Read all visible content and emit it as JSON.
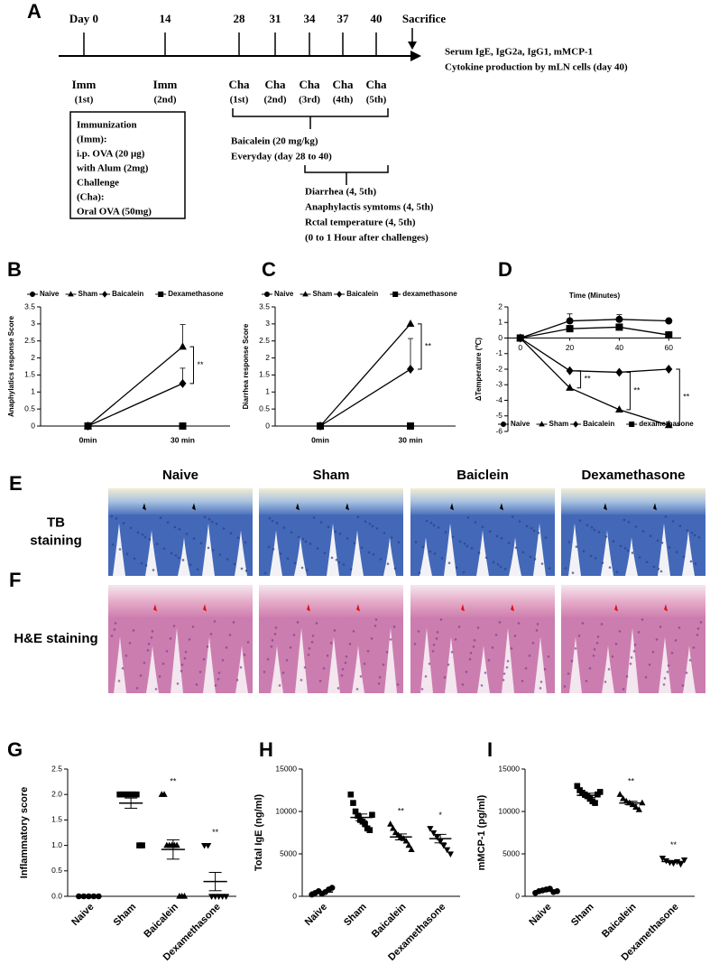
{
  "timeline": {
    "panel": "A",
    "days": [
      "Day 0",
      "14",
      "28",
      "31",
      "34",
      "37",
      "40"
    ],
    "events": [
      [
        "Imm",
        "(1st)"
      ],
      [
        "Imm",
        "(2nd)"
      ],
      [
        "Cha",
        "(1st)"
      ],
      [
        "Cha",
        "(2nd)"
      ],
      [
        "Cha",
        "(3rd)"
      ],
      [
        "Cha",
        "(4th)"
      ],
      [
        "Cha",
        "(5th)"
      ]
    ],
    "sacrifice": "Sacrifice",
    "outcomes": [
      "Serum IgE, IgG2a, IgG1, mMCP-1",
      "Cytokine production by mLN cells (day 40)"
    ],
    "box": [
      "Immunization",
      "(Imm):",
      "i.p. OVA (20 μg)",
      "with Alum (2mg)",
      "Challenge",
      "(Cha):",
      "Oral OVA (50mg)"
    ],
    "treatment": [
      "Baicalein (20 mg/kg)",
      "Everyday (day 28 to 40)"
    ],
    "measurements": [
      "Diarrhea (4, 5th)",
      "Anaphylactis symtoms (4, 5th)",
      "Rctal temperature (4, 5th)",
      "(0 to 1 Hour after challenges)"
    ]
  },
  "histology": {
    "panels": [
      "E",
      "F"
    ],
    "columns": [
      "Naive",
      "Sham",
      "Baiclein",
      "Dexamethasone"
    ],
    "rows": [
      [
        "TB",
        "staining"
      ],
      [
        "H&E staining"
      ]
    ]
  },
  "chart_data": [
    {
      "type": "line",
      "panel": "B",
      "y_label": "Anaphylatics response Score",
      "categories": [
        "0min",
        "30 min"
      ],
      "series": [
        {
          "name": "Naive",
          "marker": "circle",
          "color": "#000000",
          "values": [
            0,
            0
          ],
          "errors": [
            null,
            null
          ]
        },
        {
          "name": "Sham",
          "marker": "triangle",
          "color": "#000000",
          "values": [
            0,
            2.33
          ],
          "errors": [
            null,
            0.65
          ]
        },
        {
          "name": "Baicalein",
          "marker": "diamond",
          "color": "#000000",
          "values": [
            0,
            1.25
          ],
          "errors": [
            null,
            0.45
          ]
        },
        {
          "name": "Dexamethasone",
          "marker": "square",
          "color": "#000000",
          "values": [
            0,
            0
          ],
          "errors": [
            null,
            null
          ]
        }
      ],
      "ylim": [
        0,
        3.5
      ],
      "yticks": [
        0,
        0.5,
        1,
        1.5,
        2,
        2.5,
        3,
        3.5
      ],
      "legend": "top",
      "annotations": [
        "**"
      ]
    },
    {
      "type": "line",
      "panel": "C",
      "y_label": "Diarrhea response Score",
      "categories": [
        "0min",
        "30 min"
      ],
      "series": [
        {
          "name": "Naive",
          "marker": "circle",
          "color": "#000000",
          "values": [
            0,
            0
          ],
          "errors": [
            null,
            null
          ]
        },
        {
          "name": "Sham",
          "marker": "triangle",
          "color": "#000000",
          "values": [
            0,
            3
          ],
          "errors": [
            null,
            null
          ]
        },
        {
          "name": "Baicalein",
          "marker": "diamond",
          "color": "#000000",
          "values": [
            0,
            1.67
          ],
          "errors": [
            null,
            0.9
          ]
        },
        {
          "name": "dexamethasone",
          "marker": "square",
          "color": "#000000",
          "values": [
            0,
            0
          ],
          "errors": [
            null,
            null
          ]
        }
      ],
      "ylim": [
        0,
        3.5
      ],
      "yticks": [
        0,
        0.5,
        1,
        1.5,
        2,
        2.5,
        3,
        3.5
      ],
      "legend": "top",
      "annotations": [
        "**"
      ]
    },
    {
      "type": "line",
      "panel": "D",
      "x_label": "Time (Minutes)",
      "y_label": "ΔTemperature (℃)",
      "x": [
        0,
        20,
        40,
        60
      ],
      "xlim": [
        -5,
        65
      ],
      "xticks": [
        0,
        20,
        40,
        60
      ],
      "series": [
        {
          "name": "Naive",
          "marker": "circle",
          "color": "#000000",
          "values": [
            0,
            1.1,
            1.2,
            1.1
          ],
          "errors": [
            null,
            0.45,
            0.3,
            null
          ]
        },
        {
          "name": "Sham",
          "marker": "triangle",
          "color": "#000000",
          "values": [
            0,
            -3.2,
            -4.6,
            -5.6
          ],
          "errors": [
            null,
            null,
            null,
            null
          ]
        },
        {
          "name": "Baicalein",
          "marker": "diamond",
          "color": "#000000",
          "values": [
            0,
            -2.1,
            -2.2,
            -2.0
          ],
          "errors": [
            null,
            null,
            null,
            null
          ]
        },
        {
          "name": "dexamethasone",
          "marker": "square",
          "color": "#000000",
          "values": [
            0,
            0.6,
            0.7,
            0.2
          ],
          "errors": [
            null,
            0.2,
            0.2,
            null
          ]
        }
      ],
      "ylim": [
        -6,
        2
      ],
      "yticks": [
        -6,
        -5,
        -4,
        -3,
        -2,
        -1,
        0,
        1,
        2
      ],
      "legend": "bottom",
      "annotations": [
        "**",
        "**",
        "**"
      ]
    },
    {
      "type": "strip",
      "panel": "G",
      "y_label": "Inflammatory score",
      "color": "#000000",
      "categories": [
        "Naive",
        "Sham",
        "Baicalein",
        "Dexamethasone"
      ],
      "markers": [
        "circle",
        "square",
        "triangle",
        "triangle-down"
      ],
      "values": [
        [
          0,
          0,
          0,
          0,
          0
        ],
        [
          2,
          2,
          2,
          2,
          2,
          2,
          2,
          1,
          1
        ],
        [
          2,
          2,
          1,
          1,
          1,
          1,
          1,
          0,
          0,
          0
        ],
        [
          1,
          1,
          0,
          0,
          0,
          0,
          0
        ]
      ],
      "means": [
        0,
        1.83,
        0.92,
        0.29
      ],
      "sems": [
        0,
        0.1,
        0.19,
        0.18
      ],
      "significance": [
        null,
        null,
        "**",
        "**"
      ],
      "ylim": [
        0,
        2.5
      ],
      "yticks": [
        {
          "value": 0,
          "label": "0.0"
        },
        0.5,
        {
          "value": 1,
          "label": "1.0"
        },
        1.5,
        {
          "value": 2,
          "label": "2.0"
        },
        2.5
      ]
    },
    {
      "type": "strip",
      "panel": "H",
      "y_label": "Total IgE (ng/ml)",
      "color": "#000000",
      "categories": [
        "Naive",
        "Sham",
        "Baicalein",
        "Dexamethasone"
      ],
      "markers": [
        "circle",
        "square",
        "triangle",
        "triangle-down"
      ],
      "values": [
        [
          200,
          400,
          600,
          300,
          500,
          800,
          1000
        ],
        [
          12000,
          11000,
          10000,
          9500,
          9000,
          8800,
          8500,
          8000,
          7800,
          9600
        ],
        [
          8500,
          8000,
          7500,
          7200,
          7000,
          6800,
          6500,
          6000,
          5500
        ],
        [
          8000,
          7500,
          7000,
          6500,
          6000,
          5500,
          5000
        ]
      ],
      "means": [
        500,
        9300,
        7000,
        6800
      ],
      "sems": [
        100,
        400,
        350,
        500
      ],
      "significance": [
        null,
        null,
        "**",
        "*"
      ],
      "ylim": [
        0,
        15000
      ],
      "yticks": [
        0,
        5000,
        10000,
        15000
      ]
    },
    {
      "type": "strip",
      "panel": "I",
      "y_label": "mMCP-1 (pg/ml)",
      "color": "#000000",
      "categories": [
        "Naive",
        "Sham",
        "Baicalein",
        "Dexamethasone"
      ],
      "markers": [
        "circle",
        "square",
        "triangle",
        "triangle-down"
      ],
      "values": [
        [
          400,
          600,
          700,
          800,
          900,
          500,
          600
        ],
        [
          13000,
          12500,
          12200,
          12000,
          11800,
          11500,
          11200,
          11000,
          12000,
          12300
        ],
        [
          12000,
          11500,
          11200,
          11000,
          10800,
          10500,
          10200,
          11000
        ],
        [
          4500,
          4200,
          4000,
          3900,
          4100,
          3800,
          4300
        ]
      ],
      "means": [
        650,
        11900,
        11000,
        4100
      ],
      "sems": [
        80,
        250,
        200,
        100
      ],
      "significance": [
        null,
        null,
        "**",
        "**"
      ],
      "ylim": [
        0,
        15000
      ],
      "yticks": [
        0,
        5000,
        10000,
        15000
      ]
    }
  ]
}
